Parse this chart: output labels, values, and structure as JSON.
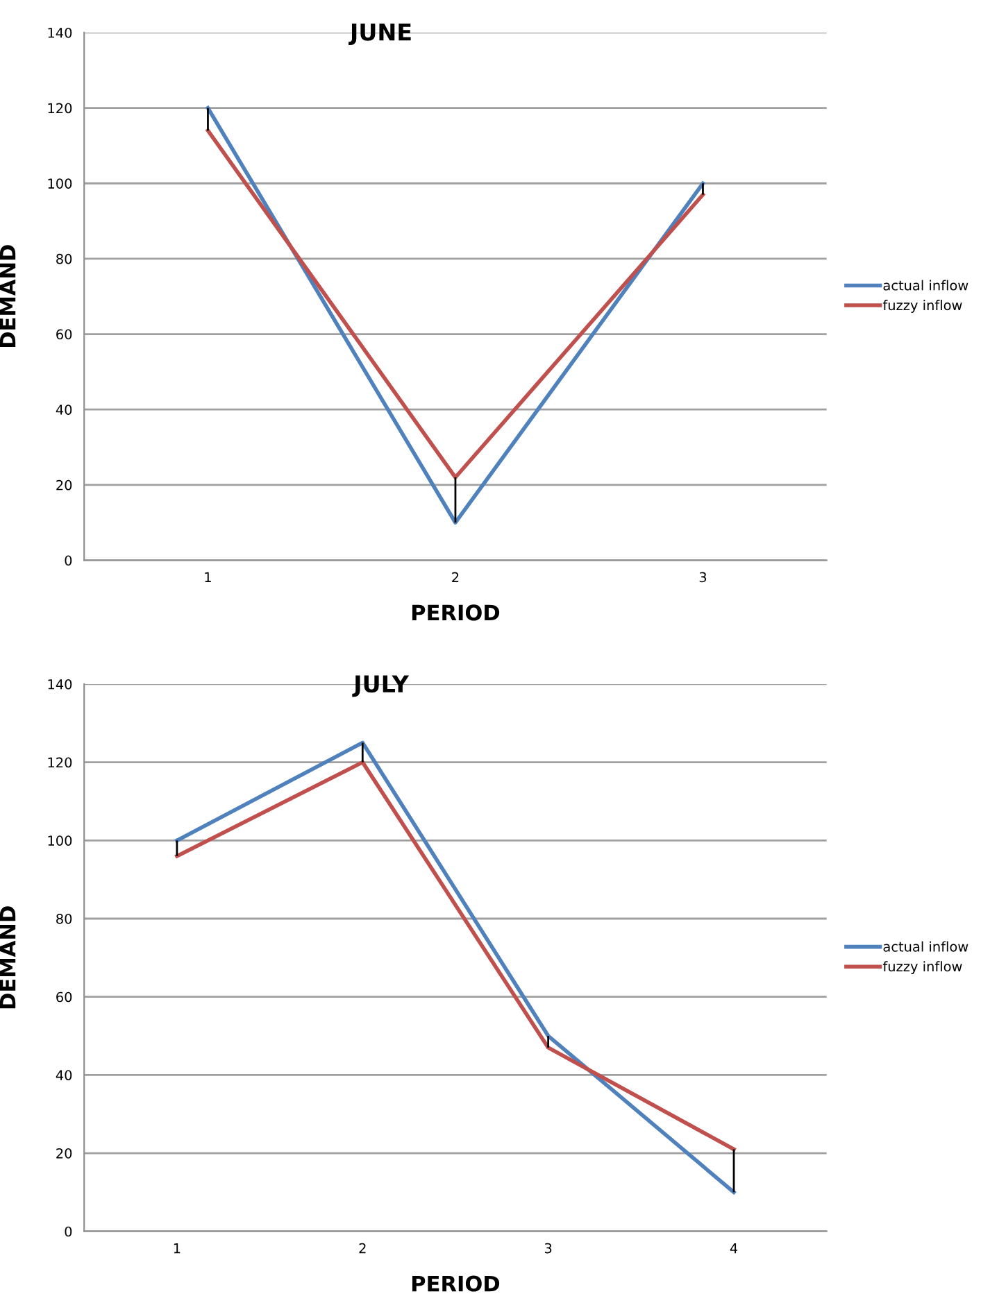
{
  "chart_data": [
    {
      "type": "line",
      "title": "JUNE",
      "xlabel": "PERIOD",
      "ylabel": "DEMAND",
      "categories": [
        "1",
        "2",
        "3"
      ],
      "series": [
        {
          "name": "actual inflow",
          "color": "#4f81bd",
          "values": [
            120,
            10,
            100
          ]
        },
        {
          "name": "fuzzy inflow",
          "color": "#c0504d",
          "values": [
            114,
            22,
            97
          ]
        }
      ],
      "ylim": [
        0,
        140
      ],
      "yticks": [
        0,
        20,
        40,
        60,
        80,
        100,
        120,
        140
      ],
      "grid": "y",
      "legend": "right",
      "marker": "none",
      "line_style": "solid"
    },
    {
      "type": "line",
      "title": "JULY",
      "xlabel": "PERIOD",
      "ylabel": "DEMAND",
      "categories": [
        "1",
        "2",
        "3",
        "4"
      ],
      "series": [
        {
          "name": "actual inflow",
          "color": "#4f81bd",
          "values": [
            100,
            125,
            50,
            10
          ]
        },
        {
          "name": "fuzzy inflow",
          "color": "#c0504d",
          "values": [
            96,
            120,
            47,
            21
          ]
        }
      ],
      "ylim": [
        0,
        140
      ],
      "yticks": [
        0,
        20,
        40,
        60,
        80,
        100,
        120,
        140
      ],
      "grid": "y",
      "legend": "right",
      "marker": "none",
      "line_style": "solid"
    }
  ]
}
